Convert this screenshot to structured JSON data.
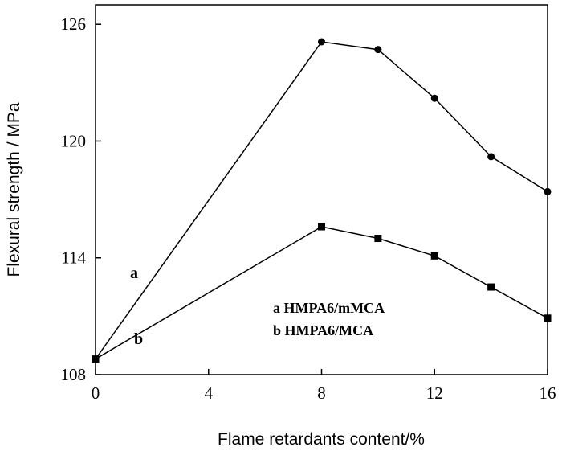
{
  "chart_data": {
    "type": "line",
    "xlabel": "Flame retardants content/%",
    "ylabel": "Flexural strength / MPa",
    "xlim": [
      0,
      16
    ],
    "ylim": [
      108,
      127
    ],
    "xticks": [
      0,
      4,
      8,
      12,
      16
    ],
    "yticks": [
      108,
      114,
      120,
      126
    ],
    "xtick_labels": [
      "0",
      "4",
      "8",
      "12",
      "16"
    ],
    "ytick_labels": [
      "108",
      "114",
      "120",
      "126"
    ],
    "grid": false,
    "series": [
      {
        "name": "a HMPA6/mMCA",
        "label": "a",
        "marker": "circle",
        "x": [
          0,
          8,
          10,
          12,
          14,
          16
        ],
        "y": [
          108.8,
          125.1,
          124.7,
          122.2,
          119.2,
          117.4
        ]
      },
      {
        "name": "b HMPA6/MCA",
        "label": "b",
        "marker": "square",
        "x": [
          0,
          8,
          10,
          12,
          14,
          16
        ],
        "y": [
          108.8,
          115.6,
          115.0,
          114.1,
          112.5,
          110.9
        ]
      }
    ],
    "legend": [
      "a HMPA6/mMCA",
      "b HMPA6/MCA"
    ]
  }
}
